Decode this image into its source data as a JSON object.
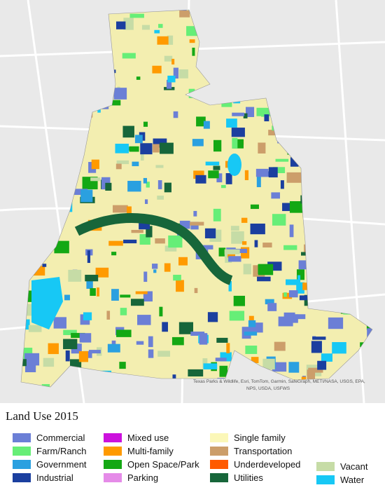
{
  "legend": {
    "title": "Land Use 2015",
    "items": [
      {
        "label": "Commercial",
        "color": "#6b7fd6"
      },
      {
        "label": "Farm/Ranch",
        "color": "#66ee77"
      },
      {
        "label": "Government",
        "color": "#2aa0e0"
      },
      {
        "label": "Industrial",
        "color": "#1b3f9f"
      },
      {
        "label": "Mixed use",
        "color": "#cc11dd"
      },
      {
        "label": "Multi-family",
        "color": "#ff9a00"
      },
      {
        "label": "Open Space/Park",
        "color": "#14a814"
      },
      {
        "label": "Parking",
        "color": "#e58be8"
      },
      {
        "label": "Single family",
        "color": "#fbf7b8"
      },
      {
        "label": "Transportation",
        "color": "#cc9e6a"
      },
      {
        "label": "Underdeveloped",
        "color": "#ff5a00"
      },
      {
        "label": "Utilities",
        "color": "#17663a"
      },
      {
        "label": "Vacant",
        "color": "#c6dca6"
      },
      {
        "label": "Water",
        "color": "#17c8f5"
      }
    ]
  },
  "attribution": [
    "Texas Parks & Wildlife, Esri, TomTom, Garmin, SafeGraph, METI/NASA, USGS, EPA,",
    "NPS, USDA, USFWS"
  ]
}
